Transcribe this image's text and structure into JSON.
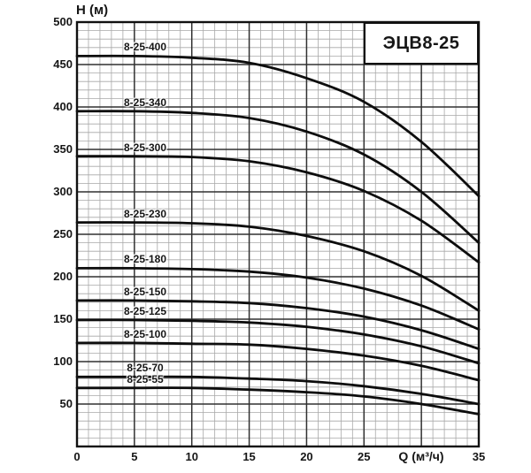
{
  "title_box": {
    "label": "ЭЦВ8-25"
  },
  "axes": {
    "y_label": "Н (м)",
    "x_label": "Q (м³/ч)",
    "y_ticks": [
      500,
      450,
      400,
      350,
      300,
      250,
      200,
      150,
      100,
      50
    ],
    "x_ticks": [
      0,
      5,
      10,
      15,
      20,
      25,
      35
    ],
    "x_label_at": 30,
    "x_minor_step": 1,
    "x_major_step": 5,
    "y_minor_step": 10,
    "y_major_step": 50
  },
  "colors": {
    "background": "#ffffff",
    "grid_minor": "#a8a8a8",
    "grid_major": "#303030",
    "border": "#111111",
    "curve": "#0d0d0d",
    "text": "#161616"
  },
  "chart_data": {
    "type": "line",
    "title": "ЭЦВ8-25",
    "xlabel": "Q (м³/ч)",
    "ylabel": "Н (м)",
    "xlim": [
      0,
      35
    ],
    "ylim": [
      0,
      500
    ],
    "grid": "minor 1 м³/ч × 10 м, major 5 м³/ч × 50 м",
    "legend_position": "labels above each curve at left side",
    "x": [
      0,
      5,
      10,
      15,
      20,
      25,
      30,
      35
    ],
    "series": [
      {
        "name": "8-25-400",
        "values": [
          460,
          460,
          458,
          452,
          434,
          406,
          359,
          295
        ]
      },
      {
        "name": "8-25-340",
        "values": [
          395,
          395,
          393,
          387,
          371,
          344,
          300,
          240
        ]
      },
      {
        "name": "8-25-300",
        "values": [
          342,
          342,
          341,
          336,
          323,
          301,
          266,
          217
        ]
      },
      {
        "name": "8-25-230",
        "values": [
          264,
          264,
          263,
          259,
          248,
          230,
          201,
          160
        ]
      },
      {
        "name": "8-25-180",
        "values": [
          210,
          210,
          209,
          206,
          199,
          186,
          166,
          138
        ]
      },
      {
        "name": "8-25-150",
        "values": [
          172,
          172,
          171,
          169,
          163,
          153,
          137,
          115
        ]
      },
      {
        "name": "8-25-125",
        "values": [
          149,
          149,
          148,
          146,
          141,
          132,
          118,
          98
        ]
      },
      {
        "name": "8-25-100",
        "values": [
          122,
          122,
          121,
          120,
          115,
          107,
          95,
          78
        ]
      },
      {
        "name": "8-25-70",
        "values": [
          82,
          82,
          82,
          80,
          77,
          71,
          62,
          50
        ]
      },
      {
        "name": "8-25-55",
        "values": [
          69,
          69,
          69,
          67,
          64,
          59,
          50,
          38
        ]
      }
    ]
  }
}
